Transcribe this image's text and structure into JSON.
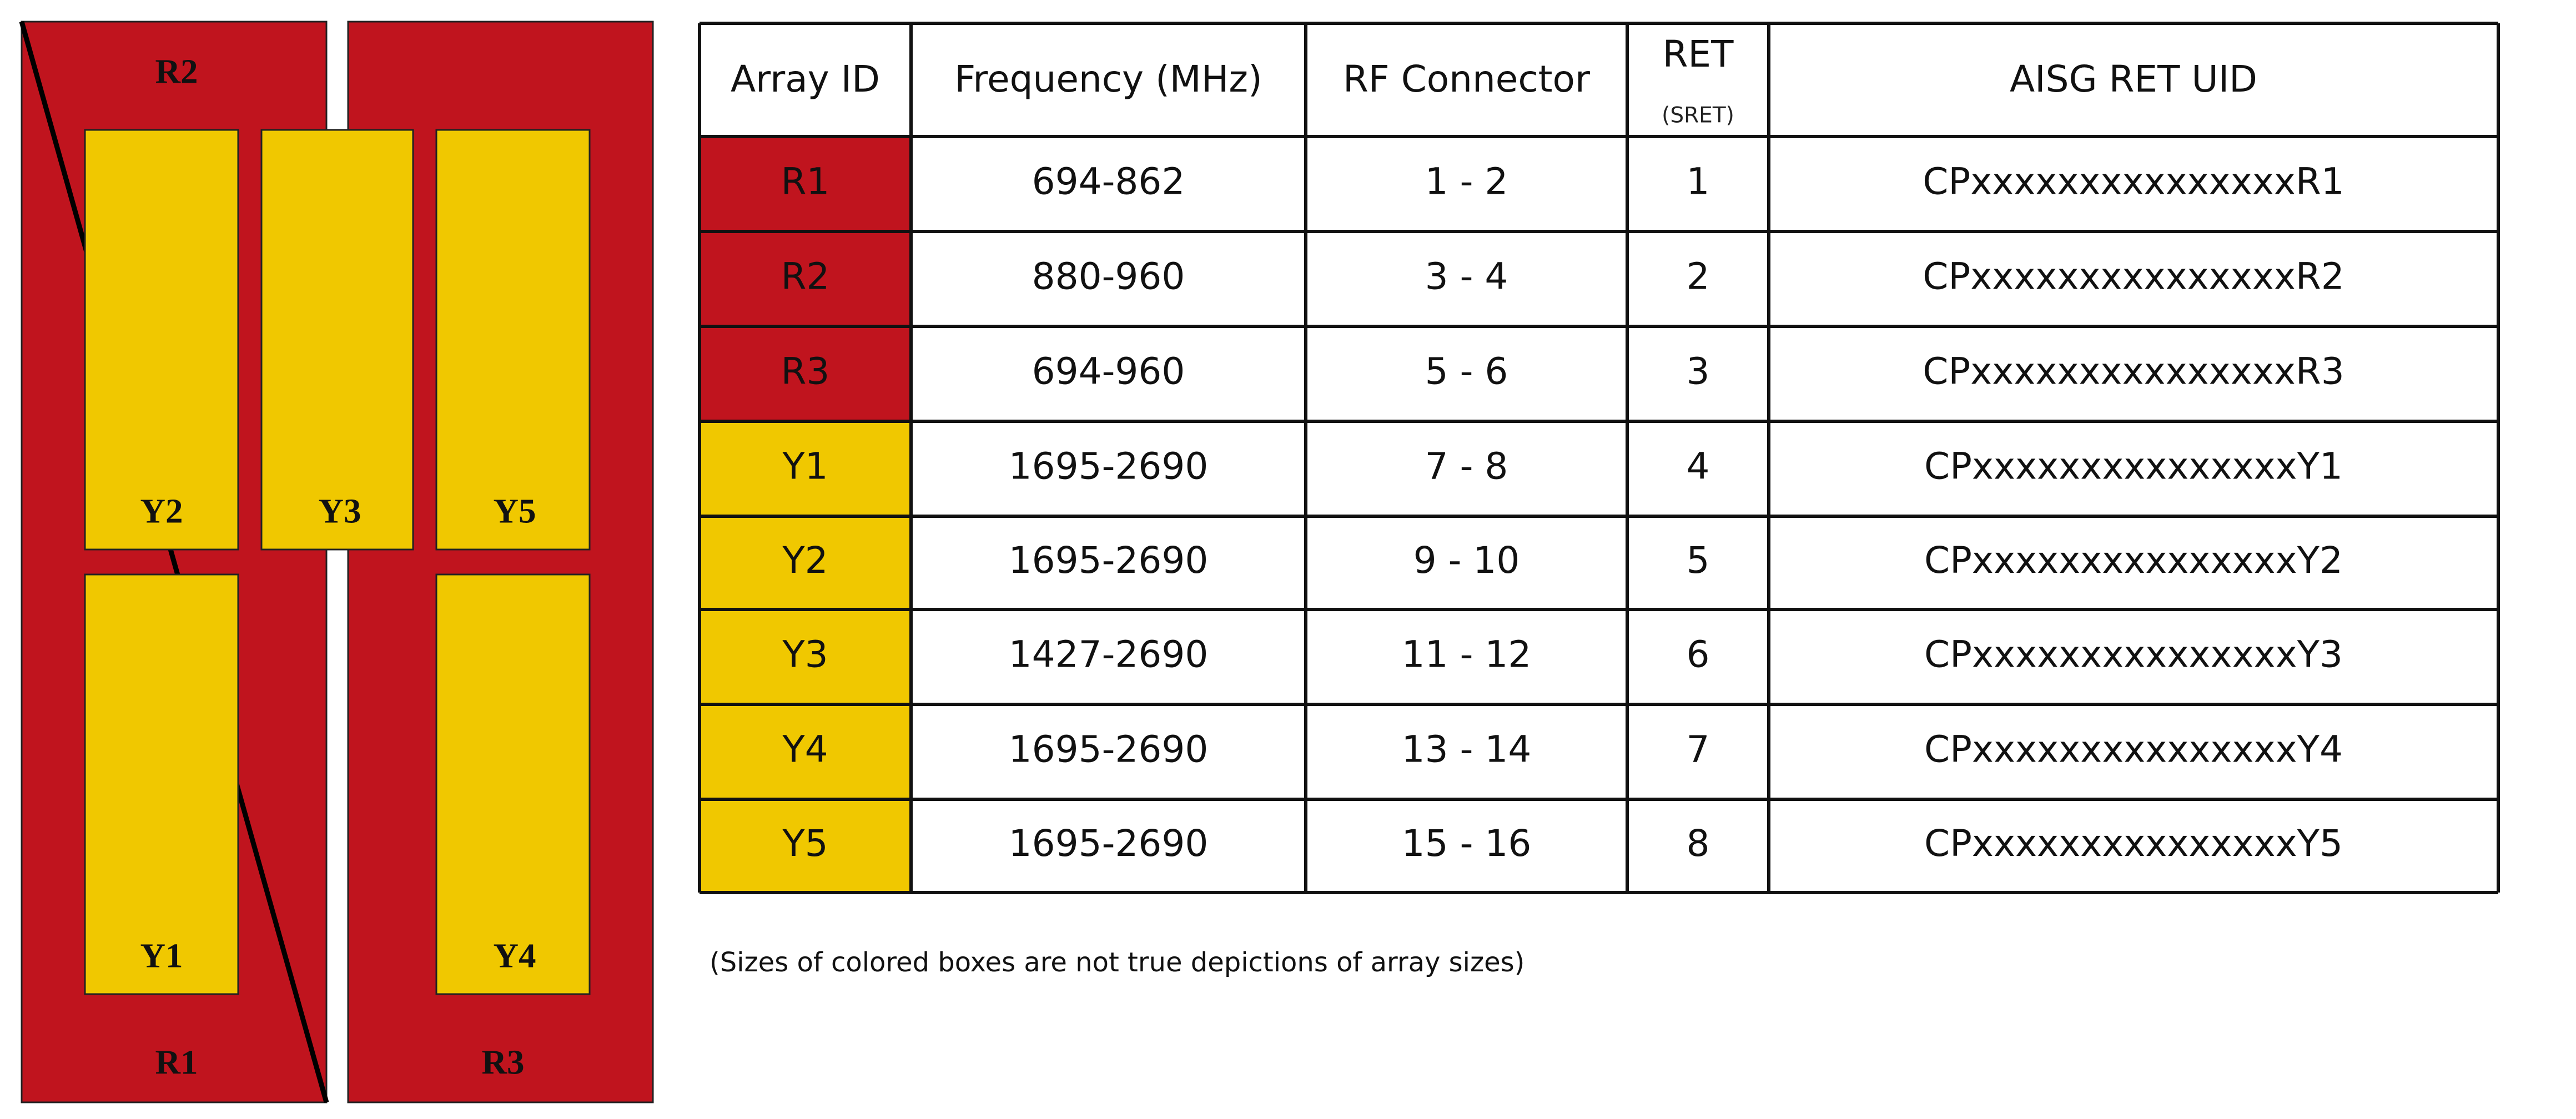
{
  "diagram": {
    "labels": [
      "R2",
      "R1",
      "R3",
      "Y2",
      "Y3",
      "Y5",
      "Y1",
      "Y4"
    ]
  },
  "table": {
    "header": [
      "Array ID",
      "Frequency (MHz)",
      "RF Connector",
      "RET",
      "AISG RET UID"
    ],
    "header_sub": "(SRET)",
    "rows": [
      [
        "R1",
        "694-862",
        "1 - 2",
        "1",
        "CPxxxxxxxxxxxxxxxR1"
      ],
      [
        "R2",
        "880-960",
        "3 - 4",
        "2",
        "CPxxxxxxxxxxxxxxxR2"
      ],
      [
        "R3",
        "694-960",
        "5 - 6",
        "3",
        "CPxxxxxxxxxxxxxxxR3"
      ],
      [
        "Y1",
        "1695-2690",
        "7 - 8",
        "4",
        "CPxxxxxxxxxxxxxxxY1"
      ],
      [
        "Y2",
        "1695-2690",
        "9 - 10",
        "5",
        "CPxxxxxxxxxxxxxxxY2"
      ],
      [
        "Y3",
        "1427-2690",
        "11 - 12",
        "6",
        "CPxxxxxxxxxxxxxxxY3"
      ],
      [
        "Y4",
        "1695-2690",
        "13 - 14",
        "7",
        "CPxxxxxxxxxxxxxxxY4"
      ],
      [
        "Y5",
        "1695-2690",
        "15 - 16",
        "8",
        "CPxxxxxxxxxxxxxxxY5"
      ]
    ]
  },
  "note": "(Sizes of colored boxes are not true depictions of array sizes)"
}
